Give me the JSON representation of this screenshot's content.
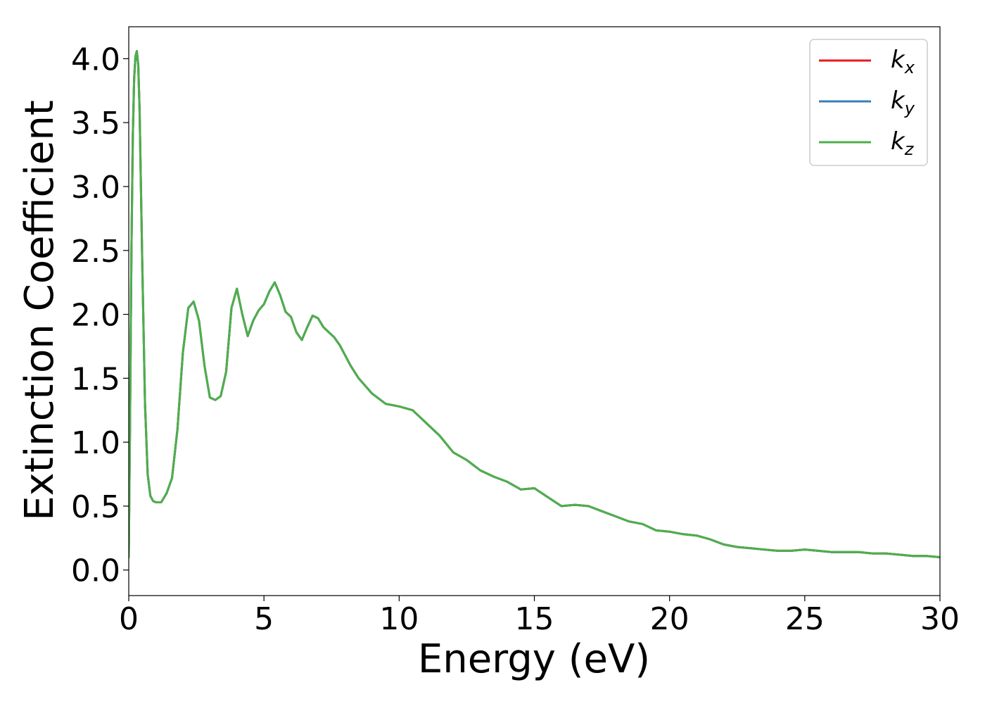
{
  "chart_data": {
    "type": "line",
    "title": "",
    "xlabel": "Energy (eV)",
    "ylabel": "Extinction Coefficient",
    "xlim": [
      0,
      30
    ],
    "ylim": [
      -0.2,
      4.25
    ],
    "xticks": [
      0,
      5,
      10,
      15,
      20,
      25,
      30
    ],
    "xtick_labels": [
      "0",
      "5",
      "10",
      "15",
      "20",
      "25",
      "30"
    ],
    "yticks": [
      0.0,
      0.5,
      1.0,
      1.5,
      2.0,
      2.5,
      3.0,
      3.5,
      4.0
    ],
    "ytick_labels": [
      "0.0",
      "0.5",
      "1.0",
      "1.5",
      "2.0",
      "2.5",
      "3.0",
      "3.5",
      "4.0"
    ],
    "grid": false,
    "legend_position": "top-right",
    "x": [
      0,
      0.05,
      0.1,
      0.15,
      0.2,
      0.25,
      0.3,
      0.35,
      0.4,
      0.5,
      0.6,
      0.7,
      0.8,
      0.9,
      1.0,
      1.2,
      1.4,
      1.6,
      1.8,
      2.0,
      2.2,
      2.4,
      2.6,
      2.8,
      3.0,
      3.2,
      3.4,
      3.6,
      3.8,
      4.0,
      4.2,
      4.4,
      4.6,
      4.8,
      5.0,
      5.2,
      5.4,
      5.6,
      5.8,
      6.0,
      6.2,
      6.4,
      6.6,
      6.8,
      7.0,
      7.2,
      7.4,
      7.6,
      7.8,
      8.0,
      8.2,
      8.5,
      9.0,
      9.5,
      10.0,
      10.5,
      11.0,
      11.5,
      12.0,
      12.5,
      13.0,
      13.5,
      14.0,
      14.5,
      15.0,
      15.5,
      16.0,
      16.5,
      17.0,
      17.5,
      18.0,
      18.5,
      19.0,
      19.5,
      20.0,
      20.5,
      21.0,
      21.5,
      22.0,
      22.5,
      23.0,
      23.5,
      24.0,
      24.5,
      25.0,
      25.5,
      26.0,
      26.5,
      27.0,
      27.5,
      28.0,
      28.5,
      29.0,
      29.5,
      30.0
    ],
    "series": [
      {
        "name": "k_x",
        "label_main": "k",
        "label_sub": "x",
        "color": "#e41a1c",
        "values": [
          0.1,
          1.2,
          2.5,
          3.4,
          3.85,
          4.02,
          4.06,
          3.95,
          3.6,
          2.4,
          1.3,
          0.75,
          0.58,
          0.54,
          0.53,
          0.53,
          0.6,
          0.72,
          1.1,
          1.7,
          2.05,
          2.1,
          1.95,
          1.6,
          1.35,
          1.33,
          1.36,
          1.55,
          2.05,
          2.2,
          2.0,
          1.83,
          1.95,
          2.03,
          2.08,
          2.18,
          2.25,
          2.15,
          2.02,
          1.98,
          1.86,
          1.8,
          1.9,
          1.99,
          1.97,
          1.9,
          1.86,
          1.82,
          1.76,
          1.68,
          1.6,
          1.5,
          1.38,
          1.3,
          1.28,
          1.25,
          1.15,
          1.05,
          0.92,
          0.86,
          0.78,
          0.73,
          0.69,
          0.63,
          0.64,
          0.57,
          0.5,
          0.51,
          0.5,
          0.46,
          0.42,
          0.38,
          0.36,
          0.31,
          0.3,
          0.28,
          0.27,
          0.24,
          0.2,
          0.18,
          0.17,
          0.16,
          0.15,
          0.15,
          0.16,
          0.15,
          0.14,
          0.14,
          0.14,
          0.13,
          0.13,
          0.12,
          0.11,
          0.11,
          0.1
        ]
      },
      {
        "name": "k_y",
        "label_main": "k",
        "label_sub": "y",
        "color": "#377eb8",
        "values": [
          0.1,
          1.2,
          2.5,
          3.4,
          3.85,
          4.02,
          4.06,
          3.95,
          3.6,
          2.4,
          1.3,
          0.75,
          0.58,
          0.54,
          0.53,
          0.53,
          0.6,
          0.72,
          1.1,
          1.7,
          2.05,
          2.1,
          1.95,
          1.6,
          1.35,
          1.33,
          1.36,
          1.55,
          2.05,
          2.2,
          2.0,
          1.83,
          1.95,
          2.03,
          2.08,
          2.18,
          2.25,
          2.15,
          2.02,
          1.98,
          1.86,
          1.8,
          1.9,
          1.99,
          1.97,
          1.9,
          1.86,
          1.82,
          1.76,
          1.68,
          1.6,
          1.5,
          1.38,
          1.3,
          1.28,
          1.25,
          1.15,
          1.05,
          0.92,
          0.86,
          0.78,
          0.73,
          0.69,
          0.63,
          0.64,
          0.57,
          0.5,
          0.51,
          0.5,
          0.46,
          0.42,
          0.38,
          0.36,
          0.31,
          0.3,
          0.28,
          0.27,
          0.24,
          0.2,
          0.18,
          0.17,
          0.16,
          0.15,
          0.15,
          0.16,
          0.15,
          0.14,
          0.14,
          0.14,
          0.13,
          0.13,
          0.12,
          0.11,
          0.11,
          0.1
        ]
      },
      {
        "name": "k_z",
        "label_main": "k",
        "label_sub": "z",
        "color": "#4daf4a",
        "values": [
          0.1,
          1.2,
          2.5,
          3.4,
          3.85,
          4.02,
          4.06,
          3.95,
          3.6,
          2.4,
          1.3,
          0.75,
          0.58,
          0.54,
          0.53,
          0.53,
          0.6,
          0.72,
          1.1,
          1.7,
          2.05,
          2.1,
          1.95,
          1.6,
          1.35,
          1.33,
          1.36,
          1.55,
          2.05,
          2.2,
          2.0,
          1.83,
          1.95,
          2.03,
          2.08,
          2.18,
          2.25,
          2.15,
          2.02,
          1.98,
          1.86,
          1.8,
          1.9,
          1.99,
          1.97,
          1.9,
          1.86,
          1.82,
          1.76,
          1.68,
          1.6,
          1.5,
          1.38,
          1.3,
          1.28,
          1.25,
          1.15,
          1.05,
          0.92,
          0.86,
          0.78,
          0.73,
          0.69,
          0.63,
          0.64,
          0.57,
          0.5,
          0.51,
          0.5,
          0.46,
          0.42,
          0.38,
          0.36,
          0.31,
          0.3,
          0.28,
          0.27,
          0.24,
          0.2,
          0.18,
          0.17,
          0.16,
          0.15,
          0.15,
          0.16,
          0.15,
          0.14,
          0.14,
          0.14,
          0.13,
          0.13,
          0.12,
          0.11,
          0.11,
          0.1
        ]
      }
    ]
  }
}
